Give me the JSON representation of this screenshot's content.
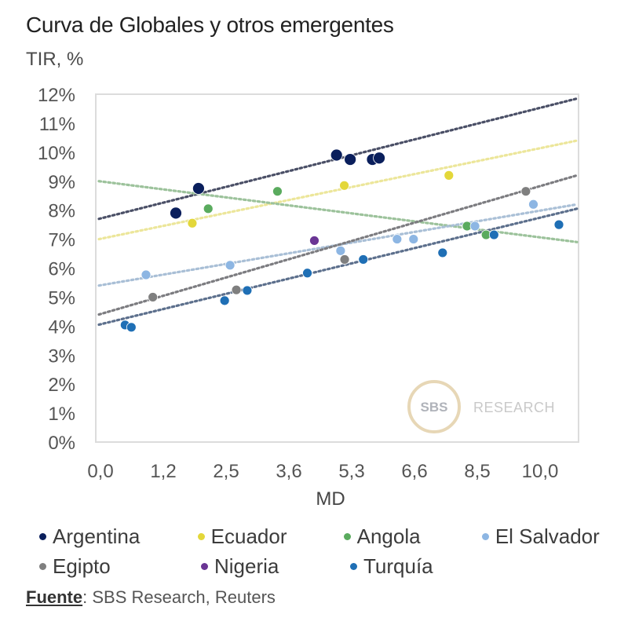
{
  "title": "Curva de Globales y otros emergentes",
  "subtitle": "TIR, %",
  "source": {
    "label": "Fuente",
    "text": ": SBS Research, Reuters"
  },
  "watermark": {
    "badge": "SBS",
    "text": "RESEARCH"
  },
  "chart_data": {
    "type": "scatter",
    "title": "Curva de Globales y otros emergentes",
    "ylabel": "TIR, %",
    "xlabel": "MD",
    "ylim": [
      0,
      12
    ],
    "xlim": [
      0,
      10.9
    ],
    "y_ticks": [
      "0%",
      "1%",
      "2%",
      "3%",
      "4%",
      "5%",
      "6%",
      "7%",
      "8%",
      "9%",
      "10%",
      "11%",
      "12%"
    ],
    "x_ticks": [
      {
        "label": "0,0",
        "value": 0
      },
      {
        "label": "1,2",
        "value": 1.2
      },
      {
        "label": "2,5",
        "value": 2.5
      },
      {
        "label": "3,6",
        "value": 3.6
      },
      {
        "label": "5,3",
        "value": 5.3
      },
      {
        "label": "6,6",
        "value": 6.6
      },
      {
        "label": "8,5",
        "value": 8.5
      },
      {
        "label": "10,0",
        "value": 10.0
      }
    ],
    "grid": false,
    "legend": "bottom",
    "series": [
      {
        "name": "Argentina",
        "color": "#0a1f5c",
        "points": [
          [
            1.46,
            7.9
          ],
          [
            1.93,
            8.75
          ],
          [
            4.89,
            9.9
          ],
          [
            5.26,
            9.75
          ],
          [
            5.73,
            9.75
          ],
          [
            5.87,
            9.8
          ]
        ],
        "trend": {
          "y_start": 7.7,
          "y_end": 11.85
        }
      },
      {
        "name": "Ecuador",
        "color": "#e3d73a",
        "points": [
          [
            1.8,
            7.55
          ],
          [
            5.1,
            8.85
          ],
          [
            7.64,
            9.2
          ]
        ],
        "trend": {
          "y_start": 7.0,
          "y_end": 10.4
        }
      },
      {
        "name": "Angola",
        "color": "#5aab5e",
        "points": [
          [
            2.13,
            8.05
          ],
          [
            3.4,
            8.65
          ],
          [
            8.19,
            7.45
          ],
          [
            8.71,
            7.15
          ]
        ],
        "trend": {
          "y_start": 9.0,
          "y_end": 6.9
        }
      },
      {
        "name": "El Salvador",
        "color": "#8db6e3",
        "points": [
          [
            0.87,
            5.77
          ],
          [
            2.57,
            6.1
          ],
          [
            5.0,
            6.6
          ],
          [
            6.24,
            7.0
          ],
          [
            6.58,
            7.0
          ],
          [
            8.43,
            7.45
          ],
          [
            9.84,
            8.2
          ]
        ],
        "trend": {
          "y_start": 5.4,
          "y_end": 8.2
        }
      },
      {
        "name": "Egipto",
        "color": "#7f7f7f",
        "points": [
          [
            1.0,
            5.0
          ],
          [
            2.68,
            5.25
          ],
          [
            5.11,
            6.3
          ],
          [
            9.66,
            8.65
          ]
        ],
        "trend": {
          "y_start": 4.4,
          "y_end": 9.2
        }
      },
      {
        "name": "Nigeria",
        "color": "#6a3594",
        "points": [
          [
            4.29,
            6.95
          ]
        ],
        "trend": null
      },
      {
        "name": "Turquía",
        "color": "#1f6fb5",
        "points": [
          [
            0.47,
            4.04
          ],
          [
            0.59,
            3.96
          ],
          [
            2.47,
            4.88
          ],
          [
            2.87,
            5.23
          ],
          [
            4.1,
            5.83
          ],
          [
            5.54,
            6.3
          ],
          [
            7.45,
            6.53
          ],
          [
            8.9,
            7.15
          ],
          [
            10.45,
            7.5
          ]
        ],
        "trend": {
          "y_start": 4.05,
          "y_end": 8.05
        }
      }
    ],
    "trend_colors": {
      "Argentina": "#4a4f66",
      "Ecuador": "#ece69a",
      "Angola": "#9cc29b",
      "El Salvador": "#a9bfd6",
      "Egipto": "#7c7c80",
      "Turquía": "#5c6f8c"
    }
  }
}
